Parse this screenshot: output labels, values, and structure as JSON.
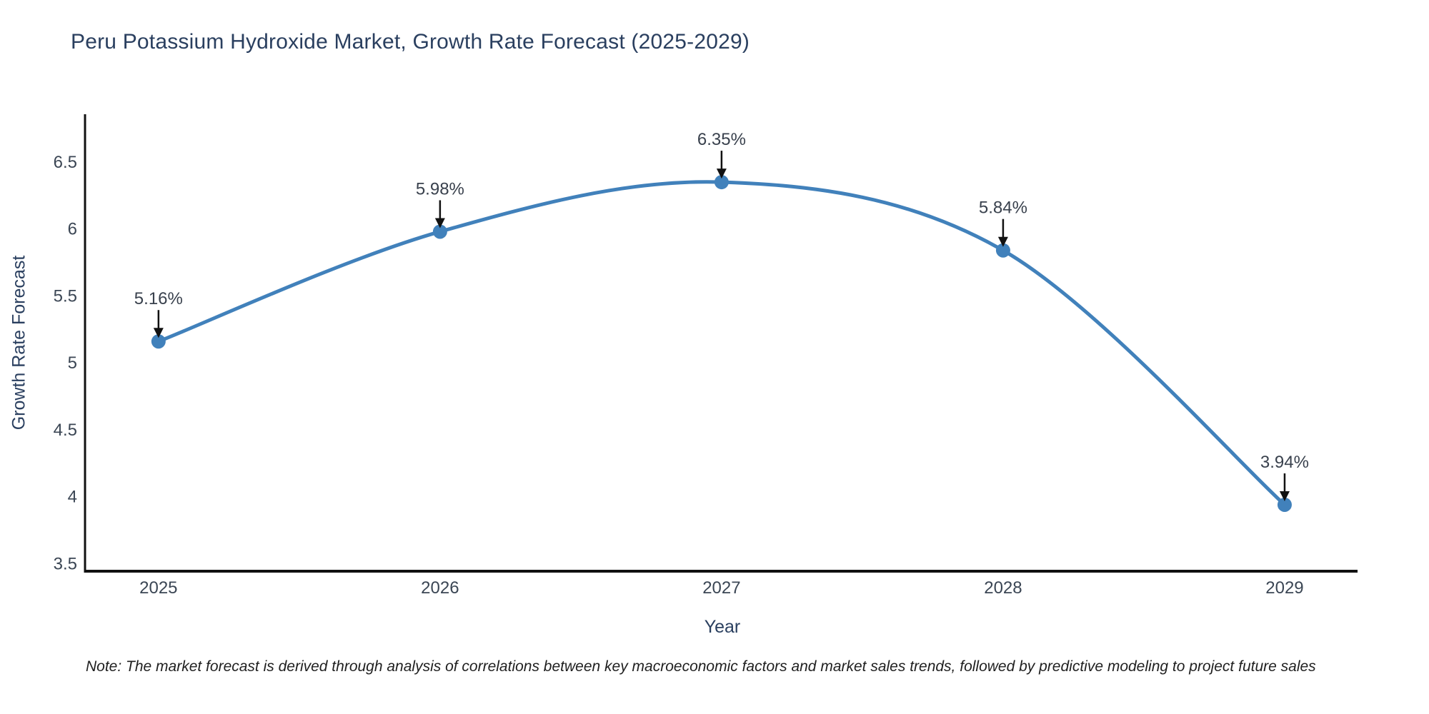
{
  "page": {
    "background": "#ffffff"
  },
  "chart_data": {
    "type": "line",
    "title": "Peru Potassium Hydroxide Market, Growth Rate Forecast (2025-2029)",
    "xlabel": "Year",
    "ylabel": "Growth Rate Forecast",
    "x": [
      2025,
      2026,
      2027,
      2028,
      2029
    ],
    "values": [
      5.16,
      5.98,
      6.35,
      5.84,
      3.94
    ],
    "annotations": [
      "5.16%",
      "5.98%",
      "6.35%",
      "5.84%",
      "3.94%"
    ],
    "line_shape": "spline",
    "line_color": "#4181bb",
    "marker_color": "#4181bb",
    "axis_color": "#111111",
    "arrow_color": "#111111",
    "title_color": "#2a3f5f",
    "tick_color": "#3b4654",
    "annotation_color": "#39414d",
    "xlim": [
      2024.739,
      2029.259
    ],
    "ylim": [
      3.444,
      6.857
    ],
    "x_tick_values": [
      2025,
      2026,
      2027,
      2028,
      2029
    ],
    "x_ticks": [
      "2025",
      "2026",
      "2027",
      "2028",
      "2029"
    ],
    "y_tick_values": [
      3.5,
      4,
      4.5,
      5,
      5.5,
      6,
      6.5
    ],
    "y_ticks": [
      "3.5",
      "4",
      "4.5",
      "5",
      "5.5",
      "6",
      "6.5"
    ],
    "grid": false,
    "legend": false,
    "note": "Note: The market forecast is derived through analysis of correlations between key macroeconomic factors and market sales trends, followed by predictive modeling to project future sales"
  }
}
